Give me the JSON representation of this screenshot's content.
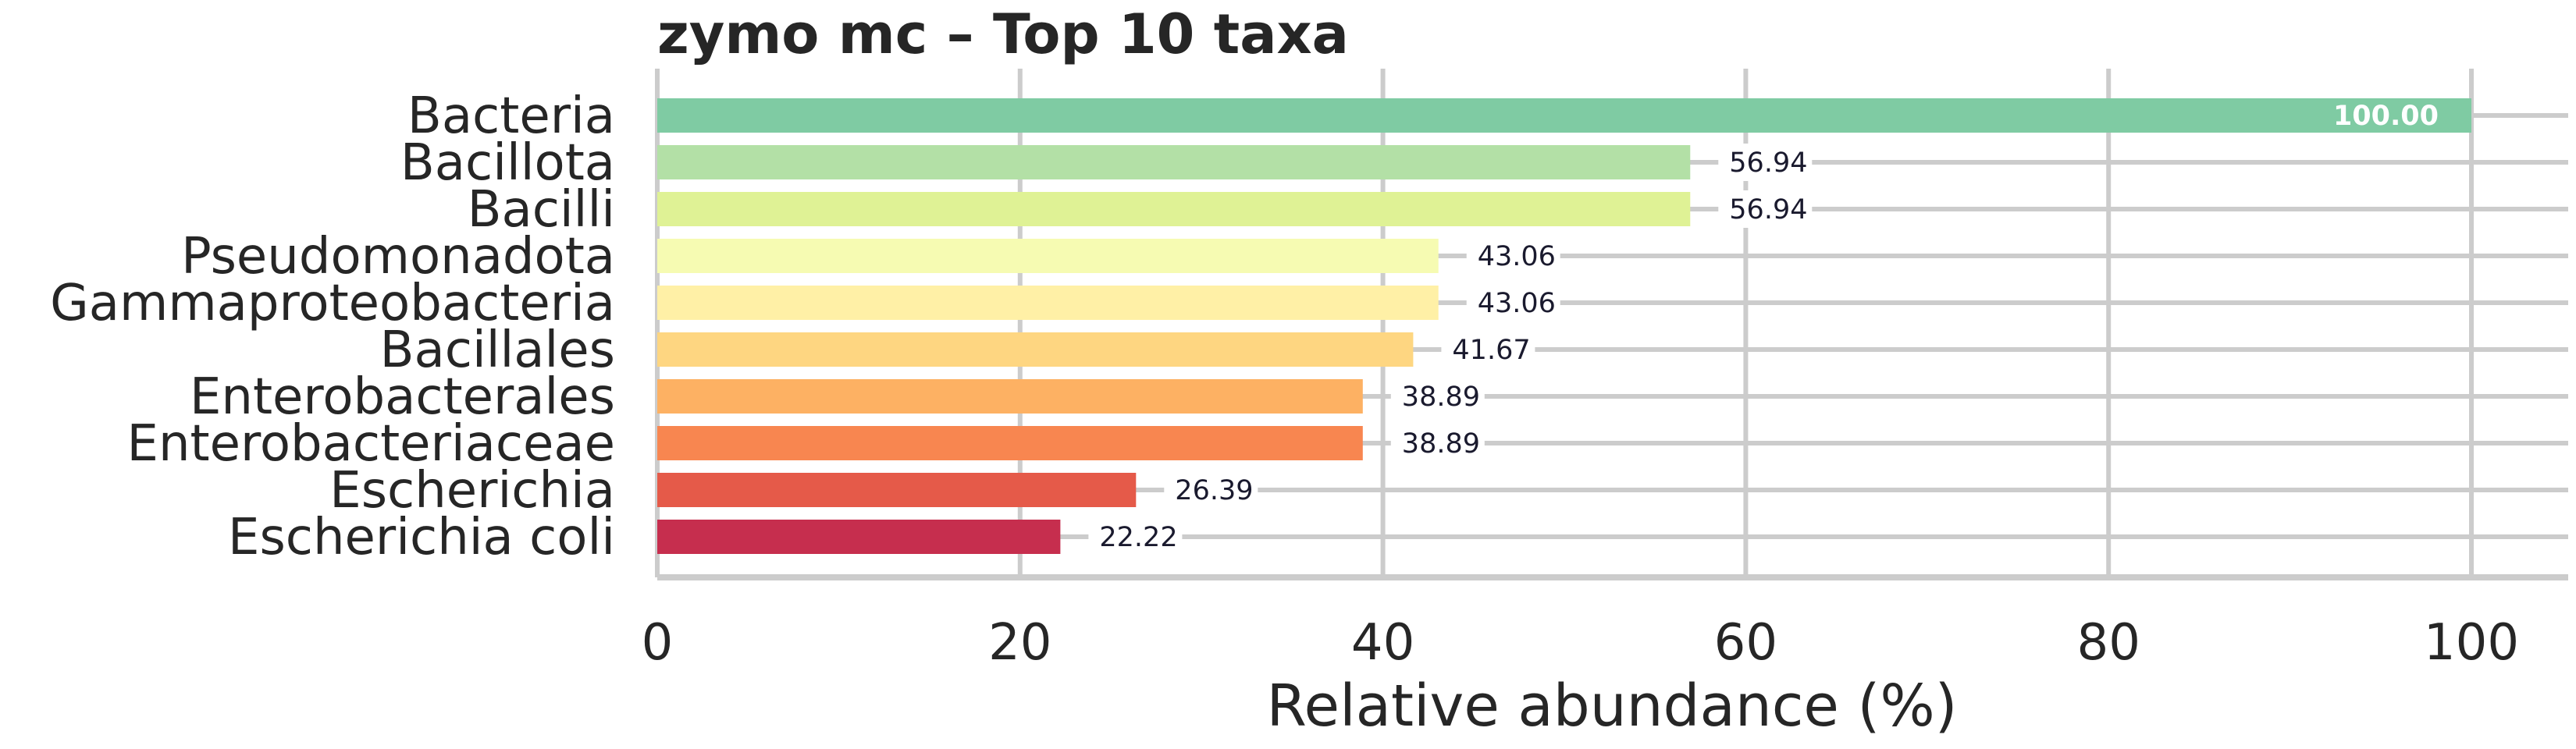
{
  "chart_data": {
    "type": "bar",
    "orientation": "horizontal",
    "title": "zymo mc – Top 10 taxa",
    "xlabel": "Relative abundance (%)",
    "ylabel": "",
    "xlim": [
      0,
      105
    ],
    "xticks": [
      0,
      20,
      40,
      60,
      80,
      100
    ],
    "grid": true,
    "categories": [
      "Bacteria",
      "Bacillota",
      "Bacilli",
      "Pseudomonadota",
      "Gammaproteobacteria",
      "Bacillales",
      "Enterobacterales",
      "Enterobacteriaceae",
      "Escherichia",
      "Escherichia coli"
    ],
    "values": [
      100.0,
      56.94,
      56.94,
      43.06,
      43.06,
      41.67,
      38.89,
      38.89,
      26.39,
      22.22
    ],
    "value_labels": [
      "100.00",
      "56.94",
      "56.94",
      "43.06",
      "43.06",
      "41.67",
      "38.89",
      "38.89",
      "26.39",
      "22.22"
    ],
    "colors": [
      "#7fcba3",
      "#b3e0a6",
      "#dff295",
      "#f6fbb2",
      "#fff0a6",
      "#fed681",
      "#fdb163",
      "#f88650",
      "#e55a49",
      "#c62e4e"
    ]
  }
}
